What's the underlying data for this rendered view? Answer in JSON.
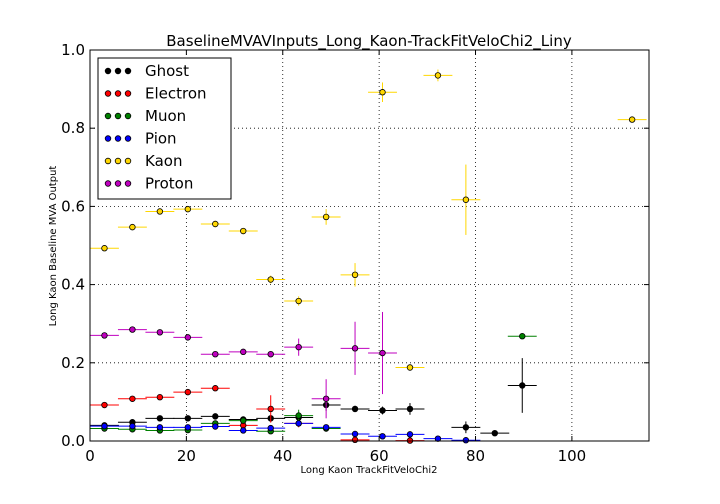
{
  "chart_data": {
    "type": "scatter",
    "title": "BaselineMVAVInputs_Long_Kaon-TrackFitVeloChi2_Liny",
    "xlabel": "Long Kaon TrackFitVeloChi2",
    "ylabel": "Long Kaon Baseline MVA Output",
    "xlim": [
      0,
      116
    ],
    "ylim": [
      0,
      1.0
    ],
    "xticks": [
      0,
      20,
      40,
      60,
      80,
      100
    ],
    "yticks": [
      0.0,
      0.2,
      0.4,
      0.6,
      0.8,
      1.0
    ],
    "xtick_labels": [
      "0",
      "20",
      "40",
      "60",
      "80",
      "100"
    ],
    "ytick_labels": [
      "0.0",
      "0.2",
      "0.4",
      "0.6",
      "0.8",
      "1.0"
    ],
    "grid": true,
    "legend": "top-left",
    "series": [
      {
        "name": "Ghost",
        "color": "#000000",
        "points": [
          {
            "x": 3,
            "y": 0.04,
            "xerr": 3,
            "yerr": 0.003
          },
          {
            "x": 8.8,
            "y": 0.048,
            "xerr": 3,
            "yerr": 0.003
          },
          {
            "x": 14.5,
            "y": 0.058,
            "xerr": 3,
            "yerr": 0.004
          },
          {
            "x": 20.3,
            "y": 0.058,
            "xerr": 3,
            "yerr": 0.004
          },
          {
            "x": 26,
            "y": 0.063,
            "xerr": 3,
            "yerr": 0.005
          },
          {
            "x": 31.8,
            "y": 0.055,
            "xerr": 3,
            "yerr": 0.006
          },
          {
            "x": 37.5,
            "y": 0.058,
            "xerr": 3,
            "yerr": 0.008
          },
          {
            "x": 43.3,
            "y": 0.06,
            "xerr": 3,
            "yerr": 0.01
          },
          {
            "x": 49,
            "y": 0.092,
            "xerr": 3,
            "yerr": 0.015
          },
          {
            "x": 55,
            "y": 0.082,
            "xerr": 3,
            "yerr": 0.008
          },
          {
            "x": 60.7,
            "y": 0.078,
            "xerr": 3,
            "yerr": 0.01
          },
          {
            "x": 66.4,
            "y": 0.082,
            "xerr": 3,
            "yerr": 0.015
          },
          {
            "x": 78,
            "y": 0.035,
            "xerr": 3,
            "yerr": 0.015
          },
          {
            "x": 84,
            "y": 0.02,
            "xerr": 3,
            "yerr": 0.005
          },
          {
            "x": 89.7,
            "y": 0.142,
            "xerr": 3,
            "yerr": 0.07
          }
        ]
      },
      {
        "name": "Electron",
        "color": "#ff0000",
        "points": [
          {
            "x": 3,
            "y": 0.092,
            "xerr": 3,
            "yerr": 0.003
          },
          {
            "x": 8.8,
            "y": 0.108,
            "xerr": 3,
            "yerr": 0.003
          },
          {
            "x": 14.5,
            "y": 0.112,
            "xerr": 3,
            "yerr": 0.004
          },
          {
            "x": 20.3,
            "y": 0.125,
            "xerr": 3,
            "yerr": 0.004
          },
          {
            "x": 26,
            "y": 0.135,
            "xerr": 3,
            "yerr": 0.005
          },
          {
            "x": 31.8,
            "y": 0.04,
            "xerr": 3,
            "yerr": 0.005
          },
          {
            "x": 37.5,
            "y": 0.082,
            "xerr": 3,
            "yerr": 0.035
          },
          {
            "x": 43.3,
            "y": 0.045,
            "xerr": 3,
            "yerr": 0.01
          },
          {
            "x": 55,
            "y": 0.003,
            "xerr": 3,
            "yerr": 0.005
          },
          {
            "x": 66.4,
            "y": 0.001,
            "xerr": 3,
            "yerr": 0.003
          }
        ]
      },
      {
        "name": "Muon",
        "color": "#008000",
        "points": [
          {
            "x": 3,
            "y": 0.032,
            "xerr": 3,
            "yerr": 0.002
          },
          {
            "x": 8.8,
            "y": 0.03,
            "xerr": 3,
            "yerr": 0.002
          },
          {
            "x": 14.5,
            "y": 0.027,
            "xerr": 3,
            "yerr": 0.002
          },
          {
            "x": 20.3,
            "y": 0.028,
            "xerr": 3,
            "yerr": 0.002
          },
          {
            "x": 26,
            "y": 0.045,
            "xerr": 3,
            "yerr": 0.003
          },
          {
            "x": 31.8,
            "y": 0.052,
            "xerr": 3,
            "yerr": 0.004
          },
          {
            "x": 37.5,
            "y": 0.025,
            "xerr": 3,
            "yerr": 0.004
          },
          {
            "x": 43.3,
            "y": 0.065,
            "xerr": 3,
            "yerr": 0.015
          },
          {
            "x": 49,
            "y": 0.032,
            "xerr": 3,
            "yerr": 0.008
          },
          {
            "x": 89.7,
            "y": 0.268,
            "xerr": 3,
            "yerr": 0.003
          }
        ]
      },
      {
        "name": "Pion",
        "color": "#0000ff",
        "points": [
          {
            "x": 3,
            "y": 0.038,
            "xerr": 3,
            "yerr": 0.002
          },
          {
            "x": 8.8,
            "y": 0.038,
            "xerr": 3,
            "yerr": 0.002
          },
          {
            "x": 14.5,
            "y": 0.035,
            "xerr": 3,
            "yerr": 0.002
          },
          {
            "x": 20.3,
            "y": 0.035,
            "xerr": 3,
            "yerr": 0.002
          },
          {
            "x": 26,
            "y": 0.037,
            "xerr": 3,
            "yerr": 0.002
          },
          {
            "x": 31.8,
            "y": 0.027,
            "xerr": 3,
            "yerr": 0.003
          },
          {
            "x": 37.5,
            "y": 0.033,
            "xerr": 3,
            "yerr": 0.003
          },
          {
            "x": 43.3,
            "y": 0.045,
            "xerr": 3,
            "yerr": 0.004
          },
          {
            "x": 49,
            "y": 0.035,
            "xerr": 3,
            "yerr": 0.005
          },
          {
            "x": 55,
            "y": 0.018,
            "xerr": 3,
            "yerr": 0.004
          },
          {
            "x": 60.7,
            "y": 0.012,
            "xerr": 3,
            "yerr": 0.003
          },
          {
            "x": 66.4,
            "y": 0.017,
            "xerr": 3,
            "yerr": 0.004
          },
          {
            "x": 72.2,
            "y": 0.006,
            "xerr": 3,
            "yerr": 0.003
          },
          {
            "x": 78,
            "y": 0.002,
            "xerr": 3,
            "yerr": 0.002
          }
        ]
      },
      {
        "name": "Kaon",
        "color": "#ffd700",
        "points": [
          {
            "x": 3,
            "y": 0.493,
            "xerr": 3,
            "yerr": 0.005
          },
          {
            "x": 8.8,
            "y": 0.547,
            "xerr": 3,
            "yerr": 0.005
          },
          {
            "x": 14.5,
            "y": 0.587,
            "xerr": 3,
            "yerr": 0.006
          },
          {
            "x": 20.3,
            "y": 0.593,
            "xerr": 3,
            "yerr": 0.007
          },
          {
            "x": 26,
            "y": 0.555,
            "xerr": 3,
            "yerr": 0.008
          },
          {
            "x": 31.8,
            "y": 0.537,
            "xerr": 3,
            "yerr": 0.008
          },
          {
            "x": 37.5,
            "y": 0.413,
            "xerr": 3,
            "yerr": 0.01
          },
          {
            "x": 43.3,
            "y": 0.358,
            "xerr": 3,
            "yerr": 0.012
          },
          {
            "x": 49,
            "y": 0.573,
            "xerr": 3,
            "yerr": 0.02
          },
          {
            "x": 55,
            "y": 0.425,
            "xerr": 3,
            "yerr": 0.03
          },
          {
            "x": 60.7,
            "y": 0.892,
            "xerr": 3,
            "yerr": 0.025
          },
          {
            "x": 66.4,
            "y": 0.188,
            "xerr": 3,
            "yerr": 0.008
          },
          {
            "x": 72.2,
            "y": 0.935,
            "xerr": 3,
            "yerr": 0.015
          },
          {
            "x": 78,
            "y": 0.617,
            "xerr": 3,
            "yerr": 0.09
          },
          {
            "x": 112.5,
            "y": 0.822,
            "xerr": 3,
            "yerr": 0.005
          }
        ]
      },
      {
        "name": "Proton",
        "color": "#bf00bf",
        "points": [
          {
            "x": 3,
            "y": 0.27,
            "xerr": 3,
            "yerr": 0.005
          },
          {
            "x": 8.8,
            "y": 0.285,
            "xerr": 3,
            "yerr": 0.005
          },
          {
            "x": 14.5,
            "y": 0.278,
            "xerr": 3,
            "yerr": 0.005
          },
          {
            "x": 20.3,
            "y": 0.265,
            "xerr": 3,
            "yerr": 0.006
          },
          {
            "x": 26,
            "y": 0.222,
            "xerr": 3,
            "yerr": 0.006
          },
          {
            "x": 31.8,
            "y": 0.228,
            "xerr": 3,
            "yerr": 0.007
          },
          {
            "x": 37.5,
            "y": 0.222,
            "xerr": 3,
            "yerr": 0.008
          },
          {
            "x": 43.3,
            "y": 0.24,
            "xerr": 3,
            "yerr": 0.022
          },
          {
            "x": 49,
            "y": 0.108,
            "xerr": 3,
            "yerr": 0.05
          },
          {
            "x": 55,
            "y": 0.237,
            "xerr": 3,
            "yerr": 0.068
          },
          {
            "x": 60.7,
            "y": 0.225,
            "xerr": 3,
            "yerr": 0.105
          }
        ]
      }
    ]
  }
}
